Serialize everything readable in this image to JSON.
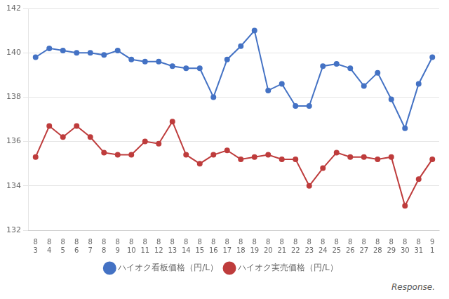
{
  "chart_data": {
    "type": "line",
    "categories": [
      [
        "8",
        "3"
      ],
      [
        "8",
        "4"
      ],
      [
        "8",
        "5"
      ],
      [
        "8",
        "6"
      ],
      [
        "8",
        "7"
      ],
      [
        "8",
        "8"
      ],
      [
        "8",
        "9"
      ],
      [
        "8",
        "10"
      ],
      [
        "8",
        "11"
      ],
      [
        "8",
        "12"
      ],
      [
        "8",
        "13"
      ],
      [
        "8",
        "14"
      ],
      [
        "8",
        "15"
      ],
      [
        "8",
        "16"
      ],
      [
        "8",
        "17"
      ],
      [
        "8",
        "18"
      ],
      [
        "8",
        "19"
      ],
      [
        "8",
        "20"
      ],
      [
        "8",
        "21"
      ],
      [
        "8",
        "22"
      ],
      [
        "8",
        "23"
      ],
      [
        "8",
        "24"
      ],
      [
        "8",
        "25"
      ],
      [
        "8",
        "26"
      ],
      [
        "8",
        "27"
      ],
      [
        "8",
        "28"
      ],
      [
        "8",
        "29"
      ],
      [
        "8",
        "30"
      ],
      [
        "8",
        "31"
      ],
      [
        "9",
        "1"
      ]
    ],
    "series": [
      {
        "name": "ハイオク看板価格（円/L）",
        "color": "#4472c4",
        "marker": "circle",
        "values": [
          139.8,
          140.2,
          140.1,
          140.0,
          140.0,
          139.9,
          140.1,
          139.7,
          139.6,
          139.6,
          139.4,
          139.3,
          139.3,
          138.0,
          139.7,
          140.3,
          141.0,
          138.3,
          138.6,
          137.6,
          137.6,
          139.4,
          139.5,
          139.3,
          138.5,
          139.1,
          137.9,
          136.6,
          138.6,
          139.8
        ]
      },
      {
        "name": "ハイオク実売価格（円/L）",
        "color": "#be3c3c",
        "marker": "circle",
        "values": [
          135.3,
          136.7,
          136.2,
          136.7,
          136.2,
          135.5,
          135.4,
          135.4,
          136.0,
          135.9,
          136.9,
          135.4,
          135.0,
          135.4,
          135.6,
          135.2,
          135.3,
          135.4,
          135.2,
          135.2,
          134.0,
          134.8,
          135.5,
          135.3,
          135.3,
          135.2,
          135.3,
          133.1,
          134.3,
          135.2
        ]
      }
    ],
    "ylim": [
      132,
      142
    ],
    "yticks": [
      132,
      134,
      136,
      138,
      140,
      142
    ],
    "grid": "y",
    "legend": "bottom",
    "annotations": [
      "Response."
    ]
  }
}
